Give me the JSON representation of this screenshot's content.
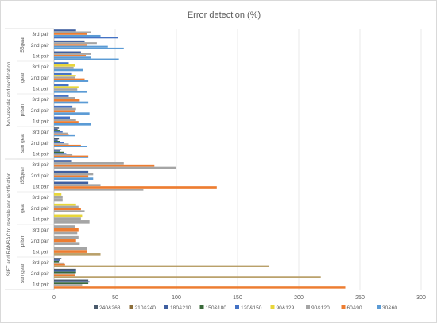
{
  "chart_data": {
    "type": "bar",
    "orientation": "horizontal",
    "title": "Error detection (%)",
    "xlim": [
      0,
      300
    ],
    "xticks": [
      0,
      50,
      100,
      150,
      200,
      250,
      300
    ],
    "grid": true,
    "legend_position": "bottom",
    "group_labels": [
      "Non-rescale and rectification",
      "SIFT and RANSAC to rescale and rectification"
    ],
    "object_labels": [
      "t55gear",
      "gear",
      "prism",
      "sun gear"
    ],
    "categories": [
      "Non-rescale and rectification | t55gear | 3rd pair",
      "Non-rescale and rectification | t55gear | 2nd pair",
      "Non-rescale and rectification | t55gear | 1st pair",
      "Non-rescale and rectification | gear | 3rd pair",
      "Non-rescale and rectification | gear | 2nd pair",
      "Non-rescale and rectification | gear | 1st pair",
      "Non-rescale and rectification | prism | 3rd pair",
      "Non-rescale and rectification | prism | 2nd pair",
      "Non-rescale and rectification | prism | 1st pair",
      "Non-rescale and rectification | sun gear | 3rd pair",
      "Non-rescale and rectification | sun gear | 2nd pair",
      "Non-rescale and rectification | sun gear | 1st pair",
      "SIFT and RANSAC to rescale and rectification | t55gear | 3rd pair",
      "SIFT and RANSAC to rescale and rectification | t55gear | 2nd pair",
      "SIFT and RANSAC to rescale and rectification | t55gear | 1st pair",
      "SIFT and RANSAC to rescale and rectification | gear | 3rd pair",
      "SIFT and RANSAC to rescale and rectification | gear | 2nd pair",
      "SIFT and RANSAC to rescale and rectification | gear | 1st pair",
      "SIFT and RANSAC to rescale and rectification | prism | 3rd pair",
      "SIFT and RANSAC to rescale and rectification | prism | 2nd pair",
      "SIFT and RANSAC to rescale and rectification | prism | 1st pair",
      "SIFT and RANSAC to rescale and rectification | sun gear | 3rd pair",
      "SIFT and RANSAC to rescale and rectification | sun gear | 2nd pair",
      "SIFT and RANSAC to rescale and rectification | sun gear | 1st pair"
    ],
    "series": [
      {
        "name": "240&268",
        "color": "#4a5a6c",
        "values": [
          0,
          0,
          0,
          0,
          0,
          0,
          0,
          0,
          0,
          4,
          4,
          6,
          0,
          0,
          0,
          0,
          0,
          0,
          0,
          0,
          0,
          6,
          18,
          28
        ]
      },
      {
        "name": "210&240",
        "color": "#8c6e3a",
        "values": [
          0,
          0,
          0,
          0,
          0,
          0,
          0,
          0,
          0,
          0,
          0,
          0,
          0,
          0,
          0,
          0,
          0,
          0,
          0,
          0,
          0,
          0,
          0,
          0
        ]
      },
      {
        "name": "180&210",
        "color": "#3f5fa0",
        "values": [
          18,
          25,
          22,
          0,
          0,
          0,
          0,
          0,
          0,
          3,
          3,
          5,
          14,
          28,
          28,
          0,
          0,
          0,
          0,
          0,
          0,
          5,
          18,
          29
        ]
      },
      {
        "name": "150&180",
        "color": "#3a6a3a",
        "values": [
          0,
          0,
          0,
          0,
          0,
          0,
          0,
          0,
          0,
          5,
          5,
          8,
          0,
          0,
          0,
          0,
          0,
          0,
          0,
          0,
          0,
          4,
          18,
          28
        ]
      },
      {
        "name": "120&150",
        "color": "#4472c4",
        "values": [
          0,
          0,
          0,
          12,
          14,
          12,
          12,
          15,
          13,
          7,
          8,
          10,
          0,
          0,
          0,
          0,
          0,
          0,
          0,
          0,
          0,
          0,
          0,
          0
        ]
      },
      {
        "name": "90&129",
        "color": "#e8d63a",
        "values": [
          0,
          0,
          0,
          17,
          18,
          20,
          0,
          0,
          0,
          0,
          0,
          0,
          0,
          0,
          0,
          6,
          18,
          23,
          0,
          0,
          0,
          0,
          0,
          0
        ]
      },
      {
        "name": "90&120",
        "color": "#a5a5a5",
        "values": [
          30,
          35,
          30,
          16,
          17,
          19,
          17,
          18,
          18,
          11,
          12,
          15,
          57,
          32,
          38,
          7,
          20,
          22,
          17,
          20,
          27,
          8,
          17,
          23
        ]
      },
      {
        "name": "60&90",
        "color": "#ed7d31",
        "values": [
          27,
          27,
          26,
          0,
          25,
          0,
          21,
          17,
          20,
          12,
          22,
          28,
          82,
          28,
          133,
          0,
          22,
          0,
          20,
          18,
          27,
          9,
          17,
          238
        ]
      },
      {
        "name": "30&60",
        "color": "#5b9bd5",
        "values": [
          38,
          44,
          30,
          0,
          0,
          0,
          0,
          0,
          0,
          0,
          0,
          0,
          0,
          0,
          0,
          0,
          0,
          0,
          0,
          0,
          0,
          0,
          0,
          0
        ]
      },
      {
        "name": "",
        "color": "#b9a06a",
        "values": [
          0,
          0,
          0,
          0,
          0,
          0,
          0,
          0,
          0,
          0,
          0,
          0,
          0,
          0,
          0,
          0,
          0,
          0,
          0,
          0,
          0,
          0,
          0,
          0
        ]
      }
    ],
    "extra_bars": [
      {
        "category_index": 0,
        "value": 52,
        "color": "#4472c4"
      },
      {
        "category_index": 1,
        "value": 57,
        "color": "#5b9bd5"
      },
      {
        "category_index": 2,
        "value": 53,
        "color": "#5b9bd5"
      },
      {
        "category_index": 3,
        "value": 24,
        "color": "#5b9bd5"
      },
      {
        "category_index": 4,
        "value": 28,
        "color": "#5b9bd5"
      },
      {
        "category_index": 5,
        "value": 27,
        "color": "#5b9bd5"
      },
      {
        "category_index": 6,
        "value": 28,
        "color": "#5b9bd5"
      },
      {
        "category_index": 7,
        "value": 29,
        "color": "#5b9bd5"
      },
      {
        "category_index": 8,
        "value": 30,
        "color": "#5b9bd5"
      },
      {
        "category_index": 9,
        "value": 17,
        "color": "#5b9bd5"
      },
      {
        "category_index": 10,
        "value": 27,
        "color": "#5b9bd5"
      },
      {
        "category_index": 11,
        "value": 28,
        "color": "#5b9bd5"
      },
      {
        "category_index": 12,
        "value": 100,
        "color": "#a5a5a5"
      },
      {
        "category_index": 13,
        "value": 32,
        "color": "#5b9bd5"
      },
      {
        "category_index": 14,
        "value": 73,
        "color": "#a5a5a5"
      },
      {
        "category_index": 15,
        "value": 7,
        "color": "#a5a5a5"
      },
      {
        "category_index": 16,
        "value": 25,
        "color": "#a5a5a5"
      },
      {
        "category_index": 17,
        "value": 29,
        "color": "#a5a5a5"
      },
      {
        "category_index": 18,
        "value": 19,
        "color": "#a5a5a5"
      },
      {
        "category_index": 19,
        "value": 21,
        "color": "#a5a5a5"
      },
      {
        "category_index": 20,
        "value": 38,
        "color": "#b9a06a"
      },
      {
        "category_index": 21,
        "value": 176,
        "color": "#b9a06a"
      },
      {
        "category_index": 22,
        "value": 218,
        "color": "#b9a06a"
      },
      {
        "category_index": 23,
        "value": 238,
        "color": "#ed7d31"
      }
    ]
  }
}
